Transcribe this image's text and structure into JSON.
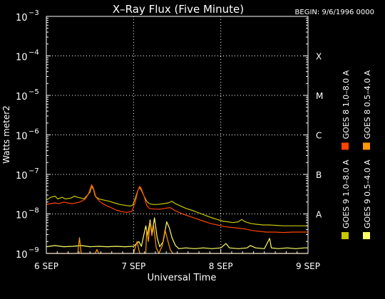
{
  "chart_data": {
    "type": "line",
    "title": "X–Ray Flux (Five Minute)",
    "begin_label": "BEGIN: 9/6/1996 0000",
    "xlabel": "Universal Time",
    "ylabel": "Watts meter2",
    "x_ticks": [
      "6 SEP",
      "7 SEP",
      "8 SEP",
      "9 SEP"
    ],
    "xlim": [
      0,
      3
    ],
    "ylim_log10": [
      -9,
      -3
    ],
    "y_ticks": [
      {
        "base": "10",
        "exp": "−3"
      },
      {
        "base": "10",
        "exp": "−4"
      },
      {
        "base": "10",
        "exp": "−5"
      },
      {
        "base": "10",
        "exp": "−6"
      },
      {
        "base": "10",
        "exp": "−7"
      },
      {
        "base": "10",
        "exp": "−8"
      },
      {
        "base": "10",
        "exp": "−9"
      }
    ],
    "flare_classes": [
      {
        "label": "X",
        "log10": -4
      },
      {
        "label": "M",
        "log10": -5
      },
      {
        "label": "C",
        "log10": -6
      },
      {
        "label": "B",
        "log10": -7
      },
      {
        "label": "A",
        "log10": -8
      }
    ],
    "grid": "dotted",
    "legend_placement": "right",
    "legend_left": [
      {
        "label": "GOES 9 1.0–8.0 A",
        "color": "#c8c800"
      },
      {
        "label": "GOES 8 1.0–8.0 A",
        "color": "#ff4400"
      }
    ],
    "legend_right": [
      {
        "label": "GOES 9 0.5–4.0 A",
        "color": "#ffff66"
      },
      {
        "label": "GOES 8 0.5–4.0 A",
        "color": "#ff9900"
      }
    ],
    "series": [
      {
        "name": "GOES 9 1.0–8.0 A",
        "color": "#c8c800",
        "points": [
          [
            0.0,
            -7.65
          ],
          [
            0.05,
            -7.58
          ],
          [
            0.1,
            -7.55
          ],
          [
            0.13,
            -7.62
          ],
          [
            0.18,
            -7.58
          ],
          [
            0.22,
            -7.62
          ],
          [
            0.28,
            -7.6
          ],
          [
            0.32,
            -7.55
          ],
          [
            0.36,
            -7.58
          ],
          [
            0.4,
            -7.6
          ],
          [
            0.43,
            -7.62
          ],
          [
            0.46,
            -7.55
          ],
          [
            0.48,
            -7.5
          ],
          [
            0.5,
            -7.45
          ],
          [
            0.52,
            -7.3
          ],
          [
            0.54,
            -7.38
          ],
          [
            0.56,
            -7.55
          ],
          [
            0.6,
            -7.62
          ],
          [
            0.66,
            -7.65
          ],
          [
            0.72,
            -7.68
          ],
          [
            0.78,
            -7.72
          ],
          [
            0.84,
            -7.76
          ],
          [
            0.9,
            -7.78
          ],
          [
            0.96,
            -7.8
          ],
          [
            0.99,
            -7.78
          ],
          [
            1.02,
            -7.6
          ],
          [
            1.05,
            -7.4
          ],
          [
            1.07,
            -7.33
          ],
          [
            1.09,
            -7.4
          ],
          [
            1.12,
            -7.55
          ],
          [
            1.15,
            -7.68
          ],
          [
            1.18,
            -7.74
          ],
          [
            1.22,
            -7.76
          ],
          [
            1.28,
            -7.76
          ],
          [
            1.34,
            -7.74
          ],
          [
            1.4,
            -7.72
          ],
          [
            1.44,
            -7.68
          ],
          [
            1.48,
            -7.74
          ],
          [
            1.54,
            -7.8
          ],
          [
            1.6,
            -7.86
          ],
          [
            1.66,
            -7.9
          ],
          [
            1.72,
            -7.95
          ],
          [
            1.78,
            -8.0
          ],
          [
            1.84,
            -8.05
          ],
          [
            1.9,
            -8.1
          ],
          [
            1.96,
            -8.14
          ],
          [
            2.02,
            -8.18
          ],
          [
            2.08,
            -8.2
          ],
          [
            2.14,
            -8.22
          ],
          [
            2.2,
            -8.2
          ],
          [
            2.24,
            -8.14
          ],
          [
            2.28,
            -8.2
          ],
          [
            2.34,
            -8.24
          ],
          [
            2.4,
            -8.26
          ],
          [
            2.48,
            -8.28
          ],
          [
            2.56,
            -8.28
          ],
          [
            2.64,
            -8.29
          ],
          [
            2.72,
            -8.3
          ],
          [
            2.8,
            -8.3
          ],
          [
            2.88,
            -8.3
          ],
          [
            2.96,
            -8.3
          ],
          [
            3.0,
            -8.3
          ]
        ]
      },
      {
        "name": "GOES 8 1.0–8.0 A",
        "color": "#ff4400",
        "points": [
          [
            0.0,
            -7.76
          ],
          [
            0.05,
            -7.74
          ],
          [
            0.1,
            -7.72
          ],
          [
            0.14,
            -7.74
          ],
          [
            0.2,
            -7.7
          ],
          [
            0.26,
            -7.73
          ],
          [
            0.3,
            -7.74
          ],
          [
            0.34,
            -7.72
          ],
          [
            0.38,
            -7.7
          ],
          [
            0.42,
            -7.66
          ],
          [
            0.45,
            -7.62
          ],
          [
            0.48,
            -7.5
          ],
          [
            0.5,
            -7.38
          ],
          [
            0.52,
            -7.26
          ],
          [
            0.54,
            -7.35
          ],
          [
            0.57,
            -7.58
          ],
          [
            0.62,
            -7.7
          ],
          [
            0.68,
            -7.78
          ],
          [
            0.74,
            -7.84
          ],
          [
            0.8,
            -7.9
          ],
          [
            0.86,
            -7.94
          ],
          [
            0.92,
            -7.96
          ],
          [
            0.98,
            -7.94
          ],
          [
            1.02,
            -7.7
          ],
          [
            1.05,
            -7.4
          ],
          [
            1.07,
            -7.3
          ],
          [
            1.09,
            -7.36
          ],
          [
            1.12,
            -7.55
          ],
          [
            1.15,
            -7.78
          ],
          [
            1.18,
            -7.86
          ],
          [
            1.24,
            -7.88
          ],
          [
            1.3,
            -7.88
          ],
          [
            1.36,
            -7.86
          ],
          [
            1.42,
            -7.84
          ],
          [
            1.48,
            -7.92
          ],
          [
            1.56,
            -8.0
          ],
          [
            1.64,
            -8.06
          ],
          [
            1.72,
            -8.12
          ],
          [
            1.8,
            -8.18
          ],
          [
            1.88,
            -8.24
          ],
          [
            1.96,
            -8.28
          ],
          [
            2.04,
            -8.32
          ],
          [
            2.12,
            -8.34
          ],
          [
            2.2,
            -8.36
          ],
          [
            2.28,
            -8.38
          ],
          [
            2.36,
            -8.42
          ],
          [
            2.44,
            -8.44
          ],
          [
            2.52,
            -8.46
          ],
          [
            2.62,
            -8.46
          ],
          [
            2.72,
            -8.47
          ],
          [
            2.82,
            -8.46
          ],
          [
            2.92,
            -8.46
          ],
          [
            3.0,
            -8.46
          ]
        ]
      },
      {
        "name": "GOES 9 0.5–4.0 A",
        "color": "#ffff66",
        "points": [
          [
            0.0,
            -8.83
          ],
          [
            0.1,
            -8.8
          ],
          [
            0.2,
            -8.83
          ],
          [
            0.3,
            -8.82
          ],
          [
            0.4,
            -8.8
          ],
          [
            0.5,
            -8.83
          ],
          [
            0.6,
            -8.82
          ],
          [
            0.7,
            -8.83
          ],
          [
            0.8,
            -8.82
          ],
          [
            0.9,
            -8.83
          ],
          [
            1.0,
            -8.82
          ],
          [
            1.06,
            -8.7
          ],
          [
            1.09,
            -8.82
          ],
          [
            1.14,
            -8.3
          ],
          [
            1.16,
            -8.55
          ],
          [
            1.19,
            -8.15
          ],
          [
            1.21,
            -8.5
          ],
          [
            1.24,
            -8.1
          ],
          [
            1.27,
            -8.6
          ],
          [
            1.3,
            -8.83
          ],
          [
            1.34,
            -8.7
          ],
          [
            1.38,
            -8.2
          ],
          [
            1.41,
            -8.35
          ],
          [
            1.44,
            -8.6
          ],
          [
            1.48,
            -8.8
          ],
          [
            1.52,
            -8.88
          ],
          [
            1.6,
            -8.86
          ],
          [
            1.7,
            -8.88
          ],
          [
            1.8,
            -8.86
          ],
          [
            1.9,
            -8.88
          ],
          [
            2.0,
            -8.86
          ],
          [
            2.06,
            -8.75
          ],
          [
            2.1,
            -8.86
          ],
          [
            2.2,
            -8.88
          ],
          [
            2.3,
            -8.86
          ],
          [
            2.34,
            -8.8
          ],
          [
            2.4,
            -8.86
          ],
          [
            2.5,
            -8.88
          ],
          [
            2.56,
            -8.62
          ],
          [
            2.58,
            -8.86
          ],
          [
            2.66,
            -8.88
          ],
          [
            2.76,
            -8.86
          ],
          [
            2.86,
            -8.88
          ],
          [
            2.96,
            -8.86
          ],
          [
            3.0,
            -8.86
          ]
        ]
      },
      {
        "name": "GOES 8 0.5–4.0 A",
        "color": "#ff9900",
        "points": [
          [
            0.0,
            -9.0
          ],
          [
            0.36,
            -9.0
          ],
          [
            0.38,
            -8.6
          ],
          [
            0.4,
            -9.0
          ],
          [
            0.56,
            -9.0
          ],
          [
            0.58,
            -8.9
          ],
          [
            0.6,
            -9.0
          ],
          [
            1.0,
            -9.0
          ],
          [
            1.04,
            -8.7
          ],
          [
            1.07,
            -9.0
          ],
          [
            1.14,
            -9.0
          ],
          [
            1.15,
            -8.4
          ],
          [
            1.17,
            -8.7
          ],
          [
            1.19,
            -8.2
          ],
          [
            1.21,
            -8.55
          ],
          [
            1.23,
            -8.3
          ],
          [
            1.26,
            -8.85
          ],
          [
            1.29,
            -9.0
          ],
          [
            1.33,
            -8.8
          ],
          [
            1.36,
            -8.4
          ],
          [
            1.39,
            -8.65
          ],
          [
            1.42,
            -8.9
          ],
          [
            1.45,
            -9.0
          ],
          [
            3.0,
            -9.0
          ]
        ]
      }
    ]
  }
}
